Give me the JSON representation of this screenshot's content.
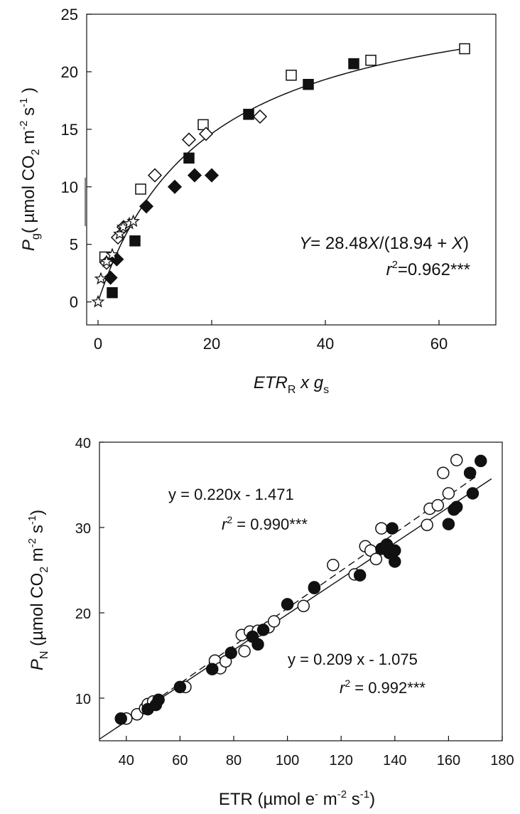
{
  "chart_data": [
    {
      "type": "scatter",
      "panel": "top",
      "xlim": [
        -2,
        70
      ],
      "ylim": [
        -2,
        25
      ],
      "xticks": [
        0,
        20,
        40,
        60
      ],
      "yticks": [
        0,
        5,
        10,
        15,
        20,
        25
      ],
      "xlabel": {
        "base": "ETR",
        "sub": "R",
        "rest": " x g",
        "sub2": "s"
      },
      "ylabel": {
        "base": "P",
        "sub": "g",
        "pre_unit": "( µmol CO",
        "sub_co2": "2",
        "m": " m",
        "sup1": "-2",
        "s": " s",
        "sup2": "-1",
        "close": " )"
      },
      "equation": {
        "y": "Y",
        "eq": "= 28.48",
        "x1": "X",
        "mid": "/(18.94 + ",
        "x2": "X",
        "end": ")"
      },
      "r2": {
        "r": "r",
        "sup": "2",
        "val": "=0.962***"
      },
      "curve": {
        "a": 28.48,
        "b": 18.94,
        "x_max": 65
      },
      "series": [
        {
          "marker": "open-square",
          "points": [
            [
              1.2,
              3.9
            ],
            [
              7.5,
              9.8
            ],
            [
              18.5,
              15.4
            ],
            [
              34,
              19.7
            ],
            [
              48,
              21
            ],
            [
              64.5,
              22
            ]
          ]
        },
        {
          "marker": "filled-square",
          "points": [
            [
              2.5,
              0.8
            ],
            [
              6.5,
              5.3
            ],
            [
              16,
              12.5
            ],
            [
              26.5,
              16.3
            ],
            [
              37,
              18.9
            ],
            [
              45,
              20.7
            ]
          ]
        },
        {
          "marker": "open-diamond",
          "points": [
            [
              1.5,
              3.4
            ],
            [
              3.5,
              5.6
            ],
            [
              4.5,
              6.5
            ],
            [
              10,
              11
            ],
            [
              16,
              14.1
            ],
            [
              19,
              14.6
            ],
            [
              28.5,
              16.1
            ]
          ]
        },
        {
          "marker": "filled-diamond",
          "points": [
            [
              2.2,
              2.1
            ],
            [
              3.3,
              3.7
            ],
            [
              8.5,
              8.3
            ],
            [
              13.5,
              10
            ],
            [
              17,
              11
            ],
            [
              20,
              11
            ]
          ]
        },
        {
          "marker": "open-star",
          "points": [
            [
              0,
              0
            ],
            [
              0.5,
              2
            ],
            [
              1.5,
              3.5
            ],
            [
              2.5,
              4.1
            ],
            [
              3.8,
              5.9
            ],
            [
              4.4,
              6.5
            ],
            [
              5.5,
              6.8
            ],
            [
              6.2,
              7
            ]
          ]
        }
      ]
    },
    {
      "type": "scatter",
      "panel": "bottom",
      "xlim": [
        30,
        180
      ],
      "ylim": [
        5,
        40
      ],
      "xticks": [
        40,
        60,
        80,
        100,
        120,
        140,
        160,
        180
      ],
      "yticks": [
        10,
        20,
        30,
        40
      ],
      "xlabel": {
        "pre": "ETR (µmol e",
        "sup1": "-",
        "m": " m",
        "sup2": "-2",
        "s": " s",
        "sup3": "-1",
        "close": ")"
      },
      "ylabel": {
        "base": "P",
        "sub": "N",
        "pre_unit": " (µmol CO",
        "sub_co2": "2",
        "m": " m",
        "sup1": "-2",
        "s": " s",
        "sup2": "-1",
        "close": ")"
      },
      "fits": [
        {
          "style": "dashed",
          "slope": 0.22,
          "intercept": -1.471,
          "equation": "y =  0.220x - 1.471",
          "r2": {
            "r": "r",
            "sup": "2",
            "val": " = 0.990***"
          }
        },
        {
          "style": "solid",
          "slope": 0.209,
          "intercept": -1.075,
          "equation": "y =  0.209 x - 1.075",
          "r2": {
            "r": "r",
            "sup": "2",
            "val": " = 0.992***"
          }
        }
      ],
      "series": [
        {
          "marker": "open-circle",
          "points": [
            [
              40,
              7.6
            ],
            [
              44,
              8.1
            ],
            [
              47,
              8.8
            ],
            [
              48,
              9.3
            ],
            [
              50,
              9.6
            ],
            [
              62,
              11.3
            ],
            [
              73,
              14.4
            ],
            [
              75,
              13.5
            ],
            [
              77,
              14.3
            ],
            [
              83,
              17.4
            ],
            [
              84,
              15.5
            ],
            [
              86,
              17.8
            ],
            [
              89,
              17.9
            ],
            [
              93,
              18.3
            ],
            [
              95,
              19
            ],
            [
              100,
              21
            ],
            [
              106,
              20.8
            ],
            [
              110,
              22.9
            ],
            [
              117,
              25.6
            ],
            [
              125,
              24.5
            ],
            [
              129,
              27.8
            ],
            [
              131,
              27.3
            ],
            [
              133,
              26.3
            ],
            [
              135,
              29.9
            ],
            [
              152,
              30.3
            ],
            [
              153,
              32.2
            ],
            [
              156,
              32.6
            ],
            [
              158,
              36.4
            ],
            [
              160,
              34
            ],
            [
              163,
              37.9
            ]
          ]
        },
        {
          "marker": "filled-circle",
          "points": [
            [
              38,
              7.6
            ],
            [
              48,
              8.7
            ],
            [
              51,
              9.2
            ],
            [
              52,
              9.8
            ],
            [
              60,
              11.3
            ],
            [
              72,
              13.4
            ],
            [
              79,
              15.3
            ],
            [
              87,
              17.2
            ],
            [
              89,
              16.3
            ],
            [
              91,
              18
            ],
            [
              100,
              21
            ],
            [
              110,
              23
            ],
            [
              127,
              24.4
            ],
            [
              135,
              27.5
            ],
            [
              137,
              28
            ],
            [
              138,
              27
            ],
            [
              139,
              29.9
            ],
            [
              140,
              26
            ],
            [
              140,
              27.3
            ],
            [
              160,
              30.4
            ],
            [
              162,
              32.1
            ],
            [
              163,
              32.4
            ],
            [
              168,
              36.4
            ],
            [
              169,
              34
            ],
            [
              172,
              37.8
            ]
          ]
        }
      ]
    }
  ]
}
